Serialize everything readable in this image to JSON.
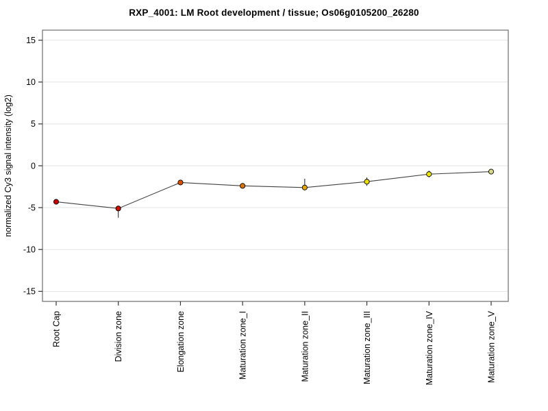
{
  "page": {
    "background": "#ffffff"
  },
  "chart_data": {
    "type": "line",
    "title": "RXP_4001: LM Root development / tissue; Os06g0105200_26280",
    "xlabel": "",
    "ylabel": "normalized Cy3 signal intensity (log2)",
    "categories": [
      "Root Cap",
      "Division zone",
      "Elongation zone",
      "Maturation zone_I",
      "Maturation zone_II",
      "Maturation zone_III",
      "Maturation zone_IV",
      "Maturation zone_V"
    ],
    "series": [
      {
        "name": "Os06g0105200_26280",
        "values": [
          -4.3,
          -5.1,
          -2.0,
          -2.4,
          -2.6,
          -1.9,
          -1.0,
          -0.7
        ],
        "whisker_low": [
          -4.5,
          -6.2,
          -2.1,
          -2.65,
          -2.85,
          -2.4,
          -1.4,
          -0.85
        ],
        "whisker_high": [
          -4.1,
          -5.0,
          -1.9,
          -2.15,
          -1.55,
          -1.4,
          -0.6,
          -0.55
        ],
        "point_colors": [
          "#cc0000",
          "#cc1100",
          "#dd4e00",
          "#dd7300",
          "#e0a500",
          "#ecdf00",
          "#eee600",
          "#d8d88a"
        ]
      }
    ],
    "yticks": [
      15,
      10,
      5,
      0,
      -5,
      -10,
      -15
    ],
    "ylim": [
      -16.2,
      16.2
    ],
    "grid": "horizontal-only",
    "legend": "none",
    "colors": {
      "line": "#404040",
      "gridline": "#e3e3e3",
      "plot_border": "#6e6e6e",
      "tick": "#333333",
      "error_bar": "#1a1a1a",
      "text": "#000000"
    }
  }
}
